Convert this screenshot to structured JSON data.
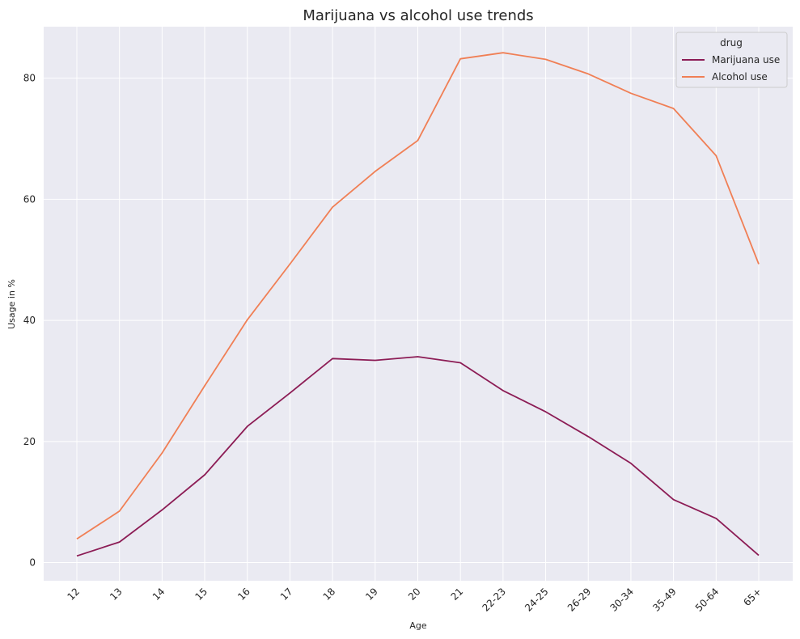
{
  "chart_data": {
    "type": "line",
    "title": "Marijuana vs alcohol use trends",
    "xlabel": "Age",
    "ylabel": "Usage in %",
    "categories": [
      "12",
      "13",
      "14",
      "15",
      "16",
      "17",
      "18",
      "19",
      "20",
      "21",
      "22-23",
      "24-25",
      "26-29",
      "30-34",
      "35-49",
      "50-64",
      "65+"
    ],
    "yticks": [
      0,
      20,
      40,
      60,
      80
    ],
    "ylim": [
      -3,
      88.5
    ],
    "grid": true,
    "legend": {
      "title": "drug",
      "position": "top-right"
    },
    "series": [
      {
        "name": "Marijuana use",
        "color": "#8c1c55",
        "values": [
          1.1,
          3.4,
          8.7,
          14.5,
          22.5,
          28.0,
          33.7,
          33.4,
          34.0,
          33.0,
          28.4,
          24.9,
          20.8,
          16.4,
          10.4,
          7.3,
          1.2
        ]
      },
      {
        "name": "Alcohol use",
        "color": "#f07f55",
        "values": [
          3.9,
          8.5,
          18.1,
          29.2,
          40.1,
          49.3,
          58.7,
          64.6,
          69.7,
          83.2,
          84.2,
          83.1,
          80.7,
          77.5,
          75.0,
          67.2,
          49.3
        ]
      }
    ]
  }
}
